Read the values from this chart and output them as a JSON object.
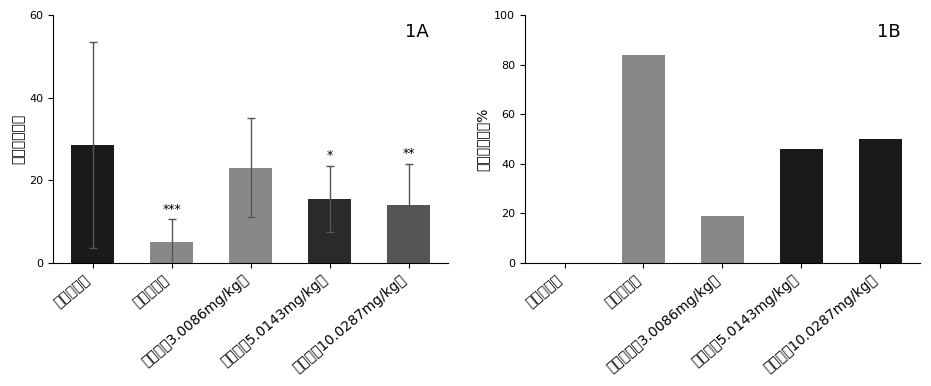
{
  "chart1": {
    "title": "1A",
    "ylabel": "扭体次数／次",
    "ylim": [
      0,
      60
    ],
    "yticks": [
      0,
      20,
      40,
      60
    ],
    "categories": [
      "空白对照组",
      "阿司匹林组",
      "尼奥灵（3.0086mg/kg）",
      "尼奥灱（5.0143mg/kg）",
      "尼奥灱（10.0287mg/kg）"
    ],
    "values": [
      28.5,
      5.0,
      23.0,
      15.5,
      14.0
    ],
    "errors": [
      25.0,
      5.5,
      12.0,
      8.0,
      10.0
    ],
    "colors": [
      "#1a1a1a",
      "#888888",
      "#888888",
      "#2a2a2a",
      "#555555"
    ],
    "significance": [
      "",
      "***",
      "",
      "*",
      "**"
    ]
  },
  "chart2": {
    "title": "1B",
    "ylabel": "镇痛百分率／%",
    "ylim": [
      0,
      100
    ],
    "yticks": [
      0,
      20,
      40,
      60,
      80,
      100
    ],
    "categories": [
      "空白对照组",
      "阿司匹林组",
      "尼奥灱低（3.0086mg/kg）",
      "尼奥灱（5.0143mg/kg）",
      "尼奥灱（10.0287mg/kg）"
    ],
    "values": [
      0,
      84,
      19,
      46,
      50
    ],
    "colors": [
      "#1a1a1a",
      "#888888",
      "#888888",
      "#1a1a1a",
      "#1a1a1a"
    ]
  },
  "background_color": "#ffffff",
  "bar_width": 0.55,
  "tick_label_fontsize": 8,
  "ylabel_fontsize": 10,
  "title_fontsize": 13,
  "sig_fontsize": 9
}
